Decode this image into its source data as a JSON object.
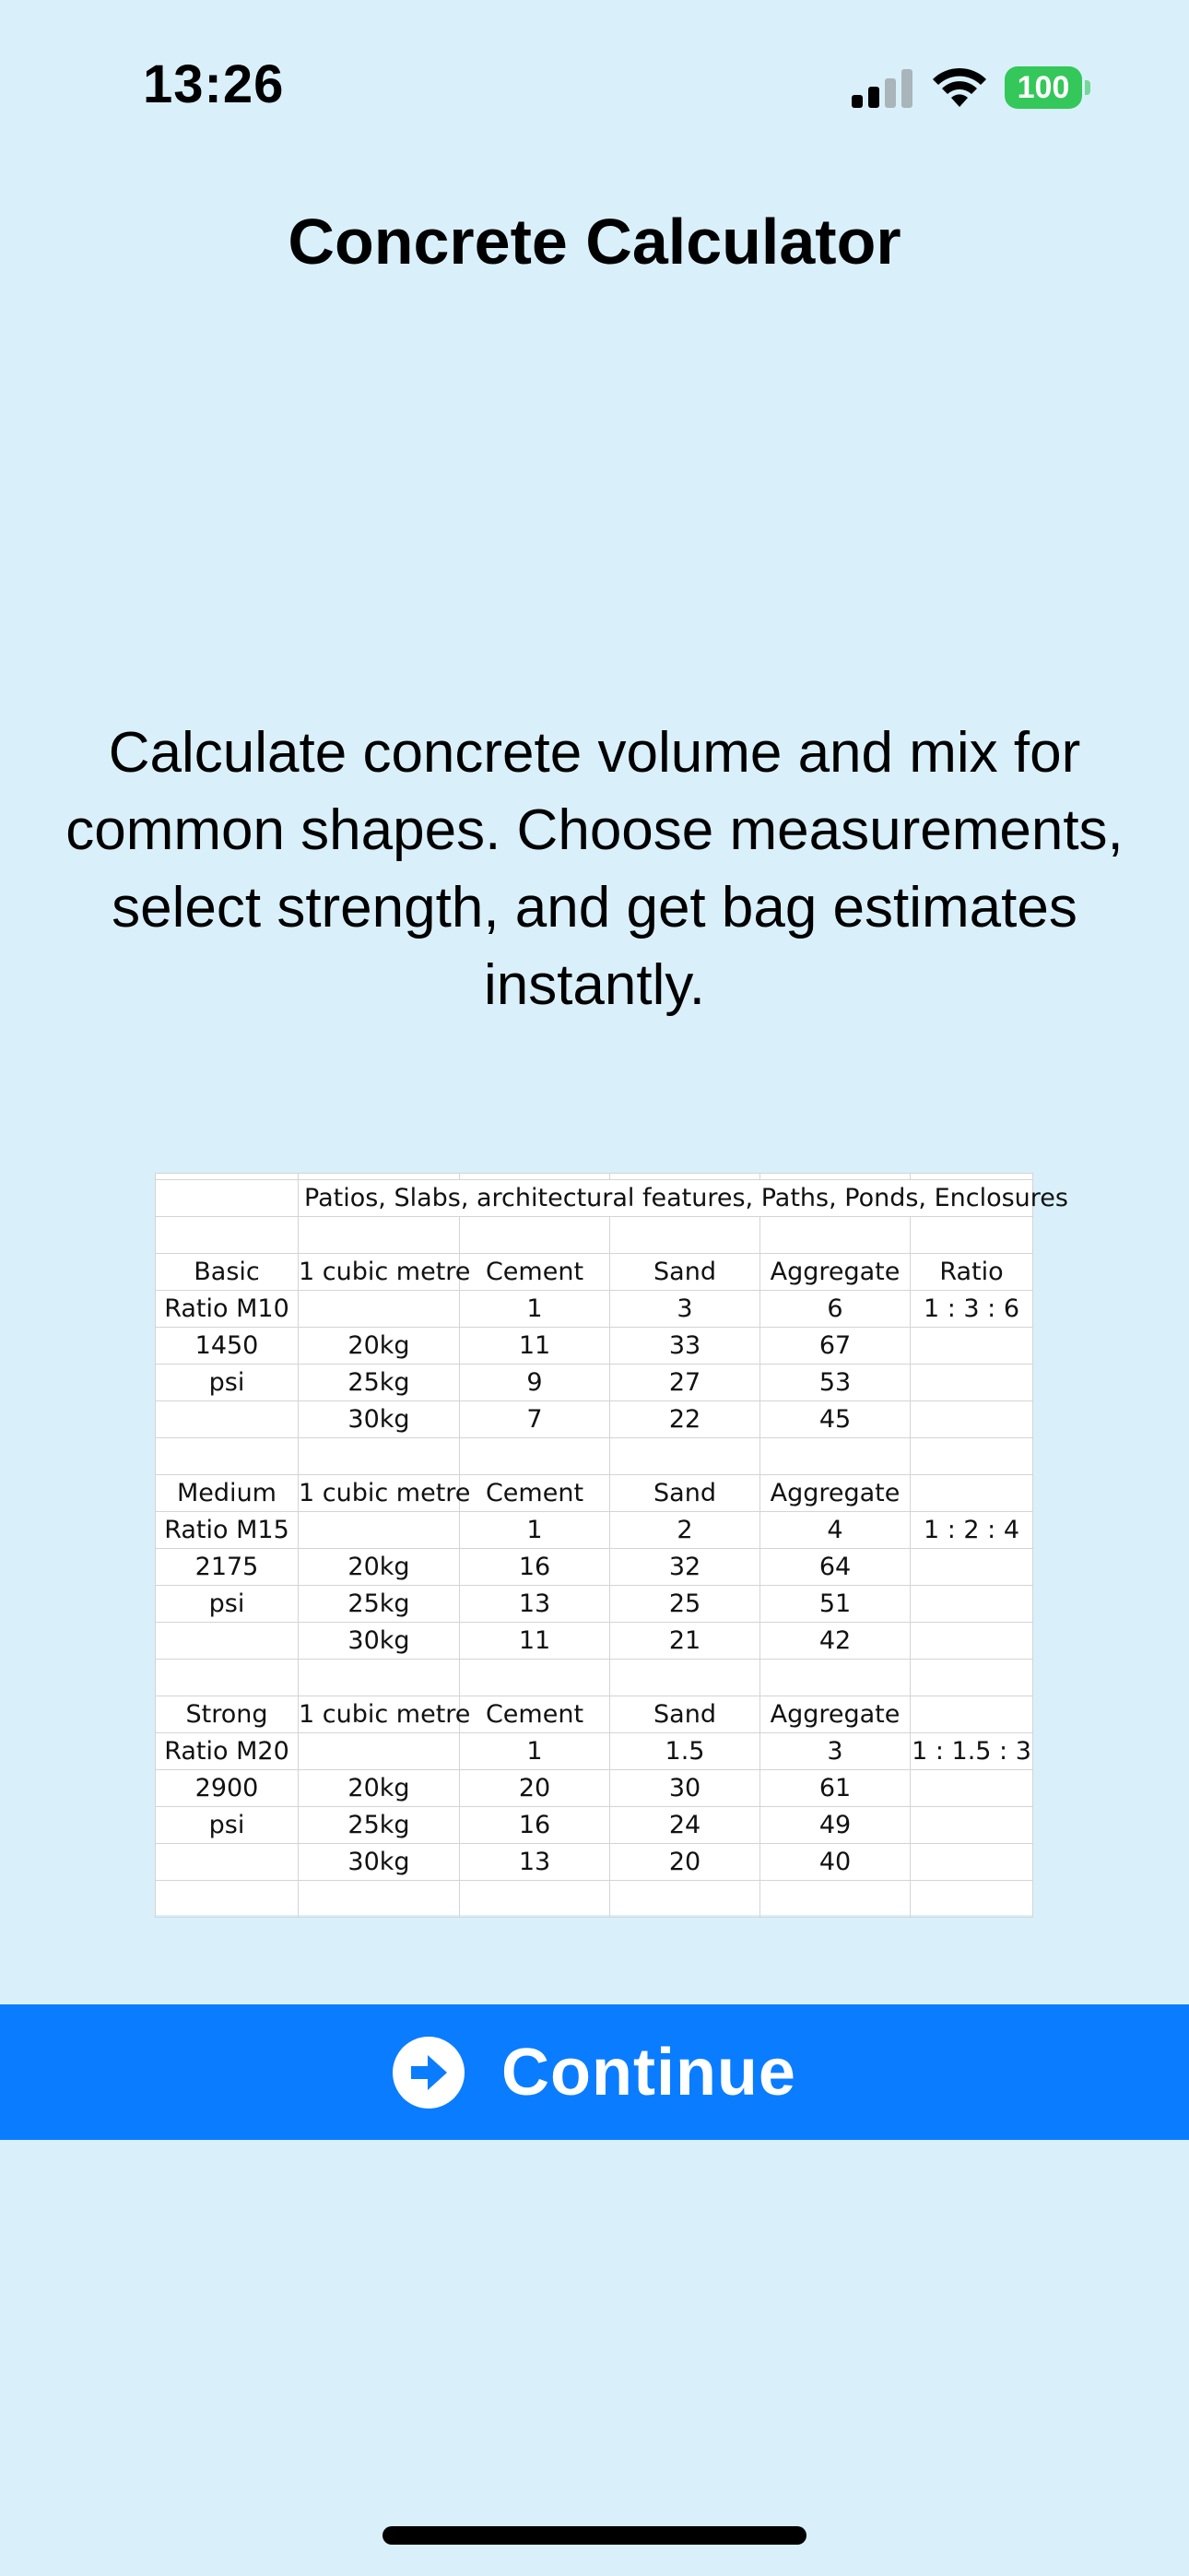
{
  "status_bar": {
    "time": "13:26",
    "battery": "100",
    "icons": [
      "cellular-signal-icon",
      "wifi-icon",
      "battery-icon"
    ]
  },
  "title": "Concrete Calculator",
  "description": "Calculate concrete volume and mix for common shapes. Choose measurements, select strength, and get bag estimates instantly.",
  "mix_table": {
    "note": "Patios, Slabs, architectural features, Paths, Ponds, Enclosures",
    "sections": [
      {
        "header": [
          "Basic",
          "1 cubic metre",
          "Cement",
          "Sand",
          "Aggregate",
          "Ratio"
        ],
        "rows": [
          [
            "Ratio M10",
            "",
            "1",
            "3",
            "6",
            "1 : 3 : 6"
          ],
          [
            "1450",
            "20kg",
            "11",
            "33",
            "67",
            ""
          ],
          [
            "psi",
            "25kg",
            "9",
            "27",
            "53",
            ""
          ],
          [
            "",
            "30kg",
            "7",
            "22",
            "45",
            ""
          ]
        ]
      },
      {
        "header": [
          "Medium",
          "1 cubic metre",
          "Cement",
          "Sand",
          "Aggregate",
          ""
        ],
        "rows": [
          [
            "Ratio M15",
            "",
            "1",
            "2",
            "4",
            "1 : 2 : 4"
          ],
          [
            "2175",
            "20kg",
            "16",
            "32",
            "64",
            ""
          ],
          [
            "psi",
            "25kg",
            "13",
            "25",
            "51",
            ""
          ],
          [
            "",
            "30kg",
            "11",
            "21",
            "42",
            ""
          ]
        ]
      },
      {
        "header": [
          "Strong",
          "1 cubic metre",
          "Cement",
          "Sand",
          "Aggregate",
          ""
        ],
        "rows": [
          [
            "Ratio M20",
            "",
            "1",
            "1.5",
            "3",
            "1 : 1.5 : 3"
          ],
          [
            "2900",
            "20kg",
            "20",
            "30",
            "61",
            ""
          ],
          [
            "psi",
            "25kg",
            "16",
            "24",
            "49",
            ""
          ],
          [
            "",
            "30kg",
            "13",
            "20",
            "40",
            ""
          ]
        ]
      }
    ]
  },
  "continue_button": {
    "label": "Continue",
    "icon": "arrow-right-circle-icon",
    "color": "#0a7cff"
  },
  "colors": {
    "background": "#d9f0fb",
    "battery": "#34c759"
  }
}
